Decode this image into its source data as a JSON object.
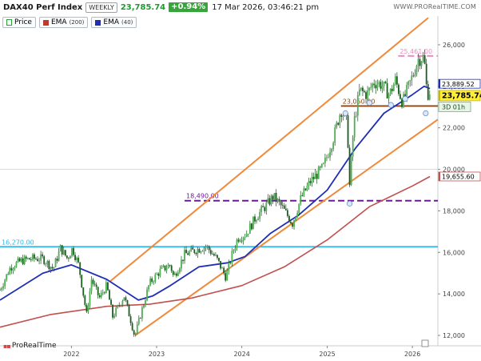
{
  "header": {
    "title": "DAX40 Perf Index",
    "timeframe": "WEEKLY",
    "last_price": "23,785.74",
    "change_pct": "+0.94%",
    "timestamp": "17 Mar 2026, 03:46:21 pm",
    "site": "WWW.PRORealTIME.COM",
    "logo_text": "ProRealTime"
  },
  "legend": [
    {
      "label": "Price",
      "param": "",
      "color": "#2e9e3a"
    },
    {
      "label": "EMA",
      "param": "(200)",
      "color": "#c0392b"
    },
    {
      "label": "EMA",
      "param": "(40)",
      "color": "#1f2fb5"
    }
  ],
  "colors": {
    "candle": "#2e7d32",
    "ema40": "#1f2fb5",
    "ema200": "#c0504d",
    "channel": "#f08a3a",
    "support_cyan": "#35b6e6",
    "support_purple": "#6a1b9a",
    "level_brown": "#8b4513",
    "level_pink": "#f08bc3"
  },
  "chart_data": {
    "type": "line",
    "y_range": [
      11500,
      27000
    ],
    "y_ticks": [
      12000,
      14000,
      16000,
      18000,
      20000,
      22000,
      24000,
      26000
    ],
    "y_tick_labels": [
      "12,000",
      "14,000",
      "16,000",
      "18,000",
      "20,000",
      "22,000",
      "24,000",
      "26,000"
    ],
    "x_range": [
      "2021-03-01",
      "2026-04-20"
    ],
    "x_ticks": [
      {
        "date": "2022-01-01",
        "label": "2022"
      },
      {
        "date": "2023-01-01",
        "label": "2023"
      },
      {
        "date": "2024-01-01",
        "label": "2024"
      },
      {
        "date": "2025-01-01",
        "label": "2025"
      },
      {
        "date": "2026-01-01",
        "label": "2026"
      }
    ],
    "price_path": [
      [
        "2021-03-01",
        14200
      ],
      [
        "2021-04-15",
        15300
      ],
      [
        "2021-06-01",
        15600
      ],
      [
        "2021-07-15",
        15700
      ],
      [
        "2021-09-01",
        15700
      ],
      [
        "2021-10-15",
        15200
      ],
      [
        "2021-11-15",
        16200
      ],
      [
        "2021-12-15",
        15700
      ],
      [
        "2022-01-05",
        16200
      ],
      [
        "2022-02-01",
        15400
      ],
      [
        "2022-03-07",
        13000
      ],
      [
        "2022-03-28",
        14700
      ],
      [
        "2022-05-01",
        13800
      ],
      [
        "2022-06-01",
        14400
      ],
      [
        "2022-06-27",
        12900
      ],
      [
        "2022-08-15",
        13900
      ],
      [
        "2022-09-15",
        12600
      ],
      [
        "2022-09-29",
        11950
      ],
      [
        "2022-11-01",
        13300
      ],
      [
        "2022-12-01",
        14500
      ],
      [
        "2023-01-15",
        15100
      ],
      [
        "2023-03-01",
        15400
      ],
      [
        "2023-03-15",
        14800
      ],
      [
        "2023-05-01",
        15900
      ],
      [
        "2023-06-15",
        16100
      ],
      [
        "2023-08-01",
        16300
      ],
      [
        "2023-09-15",
        15700
      ],
      [
        "2023-10-25",
        14800
      ],
      [
        "2023-11-20",
        15900
      ],
      [
        "2023-12-15",
        16700
      ],
      [
        "2024-01-20",
        16900
      ],
      [
        "2024-03-01",
        17700
      ],
      [
        "2024-04-10",
        18200
      ],
      [
        "2024-05-15",
        18700
      ],
      [
        "2024-06-20",
        18200
      ],
      [
        "2024-08-05",
        17400
      ],
      [
        "2024-09-10",
        18600
      ],
      [
        "2024-10-20",
        19400
      ],
      [
        "2024-12-15",
        20100
      ],
      [
        "2025-01-30",
        21600
      ],
      [
        "2025-03-01",
        22900
      ],
      [
        "2025-03-28",
        22200
      ],
      [
        "2025-04-07",
        19200
      ],
      [
        "2025-04-25",
        22200
      ],
      [
        "2025-05-20",
        23800
      ],
      [
        "2025-06-20",
        23600
      ],
      [
        "2025-07-20",
        24200
      ],
      [
        "2025-08-20",
        24100
      ],
      [
        "2025-09-25",
        23600
      ],
      [
        "2025-10-20",
        24300
      ],
      [
        "2025-11-20",
        23200
      ],
      [
        "2026-01-05",
        24600
      ],
      [
        "2026-01-25",
        25300
      ],
      [
        "2026-02-20",
        25400
      ],
      [
        "2026-03-05",
        23600
      ],
      [
        "2026-03-17",
        23785.74
      ]
    ],
    "series": [
      {
        "name": "EMA (40)",
        "points": [
          [
            "2021-03-01",
            13700
          ],
          [
            "2021-09-01",
            15000
          ],
          [
            "2022-01-01",
            15400
          ],
          [
            "2022-06-01",
            14700
          ],
          [
            "2022-10-15",
            13700
          ],
          [
            "2022-12-15",
            13900
          ],
          [
            "2023-03-01",
            14400
          ],
          [
            "2023-07-01",
            15300
          ],
          [
            "2023-11-01",
            15500
          ],
          [
            "2024-01-15",
            15800
          ],
          [
            "2024-05-01",
            16900
          ],
          [
            "2024-09-01",
            17800
          ],
          [
            "2025-01-01",
            19000
          ],
          [
            "2025-05-01",
            21000
          ],
          [
            "2025-09-01",
            22700
          ],
          [
            "2026-01-01",
            23600
          ],
          [
            "2026-02-20",
            24000
          ],
          [
            "2026-03-17",
            23889.52
          ]
        ]
      },
      {
        "name": "EMA (200)",
        "points": [
          [
            "2021-03-01",
            12400
          ],
          [
            "2021-10-01",
            13000
          ],
          [
            "2022-06-01",
            13400
          ],
          [
            "2022-12-01",
            13500
          ],
          [
            "2023-06-01",
            13800
          ],
          [
            "2024-01-01",
            14400
          ],
          [
            "2024-07-01",
            15300
          ],
          [
            "2025-01-01",
            16600
          ],
          [
            "2025-07-01",
            18200
          ],
          [
            "2026-01-01",
            19200
          ],
          [
            "2026-03-17",
            19655.6
          ]
        ]
      }
    ],
    "channel_upper": [
      [
        "2022-06-15",
        14600
      ],
      [
        "2026-03-10",
        27300
      ]
    ],
    "channel_lower": [
      [
        "2022-10-01",
        12000
      ],
      [
        "2026-04-20",
        22400
      ]
    ],
    "horizontal_levels": [
      {
        "value": 16270,
        "label": "16,270.00",
        "color_key": "support_cyan",
        "style": "solid",
        "from": "2021-03-01"
      },
      {
        "value": 18490,
        "label": "18,490.00",
        "color_key": "support_purple",
        "style": "dashed",
        "from": "2023-05-01"
      },
      {
        "value": 23050,
        "label": "23,050.00",
        "color_key": "level_brown",
        "style": "solid",
        "from": "2025-03-01"
      },
      {
        "value": 25461,
        "label": "25,461.00",
        "color_key": "level_pink",
        "style": "dashed",
        "from": "2025-11-01"
      }
    ],
    "right_labels": [
      {
        "value": 23889.52,
        "label": "23,889.52",
        "kind": "ema40"
      },
      {
        "value": 23785.74,
        "label": "23,785.74",
        "kind": "price"
      },
      {
        "value": 19655.6,
        "label": "19,655.60",
        "kind": "ema200"
      }
    ],
    "countdown": "3D 01h",
    "reference_line": 20000
  }
}
